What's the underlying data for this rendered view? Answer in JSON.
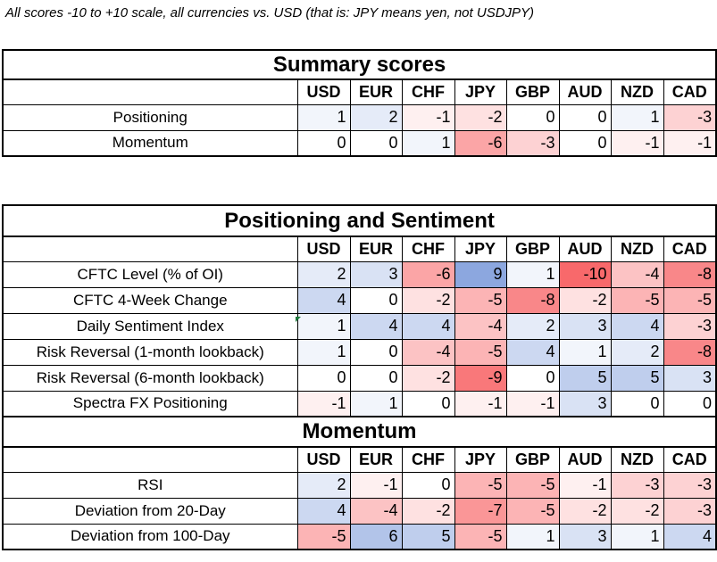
{
  "note": "All scores -10 to +10 scale, all currencies vs. USD (that is: JPY means yen, not USDJPY)",
  "currencies": [
    "USD",
    "EUR",
    "CHF",
    "JPY",
    "GBP",
    "AUD",
    "NZD",
    "CAD"
  ],
  "colors": {
    "pos_max": "#7f9ddb",
    "neg_max": "#f8696b",
    "neutral": "#ffffff"
  },
  "summary": {
    "title": "Summary scores",
    "rows": [
      {
        "label": "Positioning",
        "values": [
          1,
          2,
          -1,
          -2,
          0,
          0,
          1,
          -3
        ]
      },
      {
        "label": "Momentum",
        "values": [
          0,
          0,
          1,
          -6,
          -3,
          0,
          -1,
          -1
        ]
      }
    ]
  },
  "positioning": {
    "title": "Positioning and Sentiment",
    "rows": [
      {
        "label": "CFTC Level (% of OI)",
        "values": [
          2,
          3,
          -6,
          9,
          1,
          -10,
          -4,
          -8
        ]
      },
      {
        "label": "CFTC 4-Week Change",
        "values": [
          4,
          0,
          -2,
          -5,
          -8,
          -2,
          -5,
          -5
        ]
      },
      {
        "label": "Daily Sentiment Index",
        "values": [
          1,
          4,
          4,
          -4,
          2,
          3,
          4,
          -3
        ]
      },
      {
        "label": "Risk Reversal (1-month lookback)",
        "values": [
          1,
          0,
          -4,
          -5,
          4,
          1,
          2,
          -8
        ]
      },
      {
        "label": "Risk Reversal (6-month lookback)",
        "values": [
          0,
          0,
          -2,
          -9,
          0,
          5,
          5,
          3
        ]
      },
      {
        "label": "Spectra FX Positioning",
        "values": [
          -1,
          1,
          0,
          -1,
          -1,
          3,
          0,
          0
        ]
      }
    ]
  },
  "momentum": {
    "title": "Momentum",
    "rows": [
      {
        "label": "RSI",
        "values": [
          2,
          -1,
          0,
          -5,
          -5,
          -1,
          -3,
          -3
        ]
      },
      {
        "label": "Deviation from 20-Day",
        "values": [
          4,
          -4,
          -2,
          -7,
          -5,
          -2,
          -2,
          -3
        ]
      },
      {
        "label": "Deviation from 100-Day",
        "values": [
          -5,
          6,
          5,
          -5,
          1,
          3,
          1,
          4
        ]
      }
    ]
  }
}
